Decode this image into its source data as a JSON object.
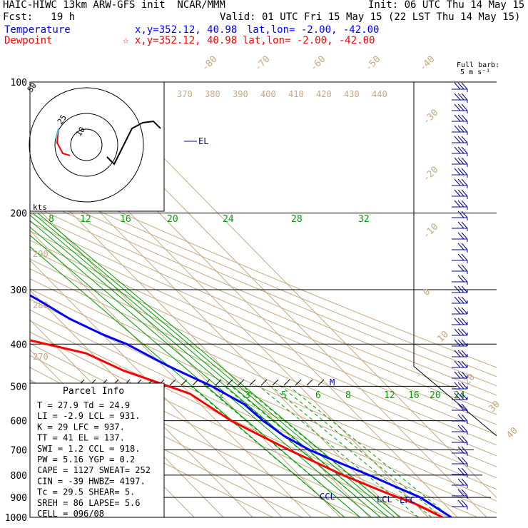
{
  "header": {
    "title": "HAIC-HIWC 13km ARW-GFS init  NCAR/MMM",
    "init": "Init: 06 UTC Thu 14 May 15",
    "fcst": "Fcst:   19 h",
    "valid": "Valid: 01 UTC Fri 15 May 15 (22 LST Thu 14 May 15)",
    "temp_label": "Temperature",
    "temp_xy": "x,y=352.12, 40.98",
    "temp_latlon": "lat,lon= -2.00, -42.00",
    "dew_label": "Dewpoint",
    "dew_xy": "☆ x,y=352.12, 40.98",
    "dew_latlon": "lat,lon= -2.00, -42.00"
  },
  "barb_title": [
    "Full barb:",
    "5 m s⁻¹"
  ],
  "colors": {
    "temperature": "#0000ff",
    "dewpoint": "#ff0000",
    "isotherm": "#c8a880",
    "mixing_ratio": "#00a000",
    "hodo_a": "#ff0000",
    "hodo_b": "#40c0e0"
  },
  "chart_data": {
    "type": "line",
    "title": "HAIC-HIWC 13km ARW-GFS init",
    "ylabel": "",
    "pressure_ticks": [
      "100",
      "200",
      "300",
      "400",
      "500",
      "600",
      "700",
      "800",
      "900",
      "1000"
    ],
    "isotherm_labels": [
      "-80",
      "-70",
      "-60",
      "-50",
      "-40",
      "-30",
      "-20",
      "-10",
      "0",
      "10",
      "20",
      "30",
      "40"
    ],
    "theta_labels_top": [
      "370",
      "380",
      "390",
      "400",
      "410",
      "420",
      "430",
      "440"
    ],
    "theta_labels_left": [
      "290",
      "280",
      "270"
    ],
    "mixing_ratio_upper": [
      "8",
      "12",
      "16",
      "20",
      "24",
      "28",
      "32"
    ],
    "mixing_ratio_lower": [
      "2",
      "3",
      "5",
      "6",
      "8",
      "12",
      "16",
      "20",
      "24"
    ],
    "series": [
      {
        "name": "Temperature",
        "x": [
          -76.5,
          -74,
          -70,
          -65,
          -60,
          -57,
          -54,
          -50,
          -45,
          -40,
          -36,
          -30,
          -25,
          -18,
          -10,
          -5,
          -4,
          -2,
          2,
          8,
          14,
          19,
          24,
          27.9
        ],
        "y": [
          100,
          120,
          150,
          170,
          190,
          200,
          230,
          260,
          290,
          320,
          350,
          380,
          400,
          450,
          500,
          550,
          600,
          650,
          700,
          750,
          800,
          850,
          900,
          1000
        ]
      },
      {
        "name": "Dewpoint",
        "x": [
          -77,
          -83,
          -82,
          -83,
          -86,
          -90,
          -89,
          -87,
          -85,
          -80,
          -75,
          -69,
          -77,
          -58,
          -42,
          -35,
          -20,
          -15,
          -5,
          5,
          14,
          20,
          24.9
        ],
        "y": [
          100,
          120,
          150,
          170,
          190,
          200,
          230,
          260,
          290,
          320,
          350,
          360,
          375,
          390,
          420,
          460,
          520,
          600,
          700,
          800,
          880,
          930,
          1000
        ]
      }
    ],
    "annotations": [
      "EL",
      "M",
      "CCL",
      "LCL",
      "LFC"
    ],
    "hodograph": {
      "rings": [
        "10",
        "25",
        "50"
      ],
      "label": "kts"
    },
    "wind_barbs_count": 40
  },
  "parcel_info": {
    "title": "Parcel Info",
    "rows": [
      "T   =    27.9  Td  =  24.9",
      "LI  =    -2.9  LCL  =  931.",
      "K   =      29  LFC  =  937.",
      "TT  =      41  EL   =  137.",
      "SWI =     1.2  CCL  =  918.",
      "PW  =    5.16  YGP  =   0.2",
      "CAPE =   1127  SWEAT=   252",
      "CIN  =    -39  HWBZ= 4197.",
      "Tc  =    29.5  SHEAR=    5.",
      "SREH =     86  LAPSE=   5.6",
      "CELL = 096/08"
    ]
  }
}
